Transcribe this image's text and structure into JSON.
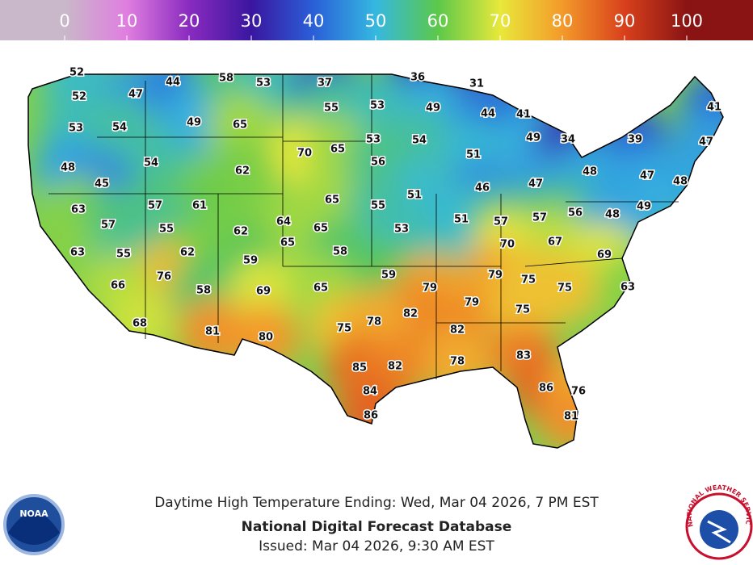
{
  "legend_ticks": [
    0,
    10,
    20,
    30,
    40,
    50,
    60,
    70,
    80,
    90,
    100
  ],
  "readings": [
    52,
    52,
    47,
    44,
    58,
    53,
    37,
    36,
    31,
    55,
    53,
    49,
    44,
    41,
    41,
    53,
    54,
    49,
    65,
    53,
    54,
    49,
    34,
    39,
    47,
    70,
    65,
    56,
    51,
    48,
    54,
    62,
    48,
    47,
    48,
    45,
    51,
    46,
    47,
    65,
    55,
    63,
    57,
    61,
    49,
    56,
    48,
    57,
    51,
    57,
    64,
    65,
    53,
    57,
    55,
    62,
    65,
    70,
    67,
    63,
    55,
    62,
    59,
    58,
    69,
    59,
    79,
    76,
    66,
    58,
    69,
    65,
    79,
    75,
    75,
    63,
    79,
    82,
    75,
    68,
    81,
    80,
    75,
    78,
    82,
    83,
    78,
    85,
    82,
    84,
    86,
    76,
    86,
    81
  ],
  "caption": {
    "line1": "Daytime High Temperature Ending: Wed, Mar 04 2026, 7 PM EST",
    "line2": "National Digital Forecast Database",
    "line3": "Issued: Mar 04 2026, 9:30 AM EST"
  },
  "logos": {
    "noaa": "NOAA",
    "nws": "NATIONAL WEATHER SERVICE"
  }
}
